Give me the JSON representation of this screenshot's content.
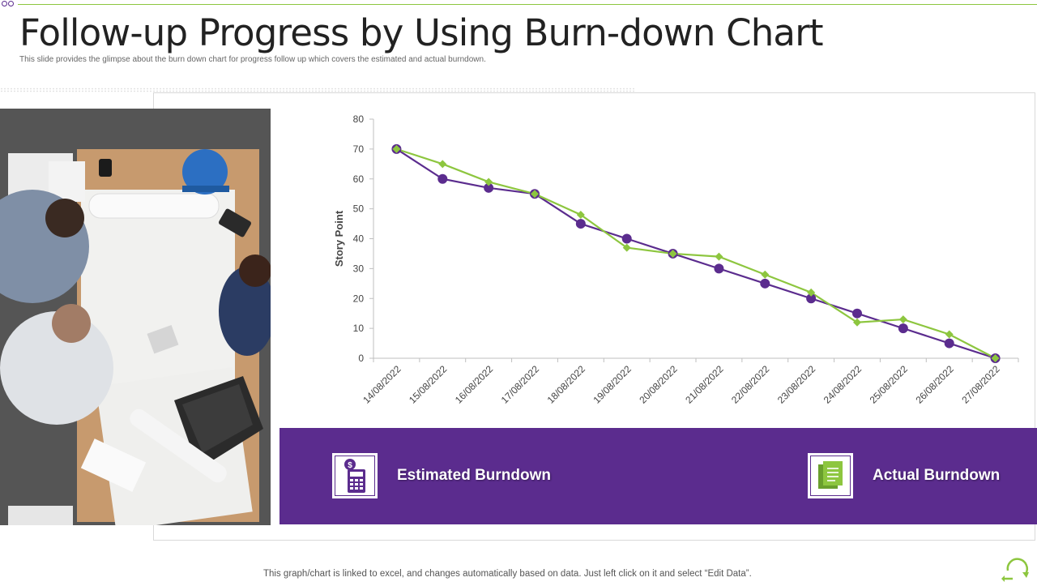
{
  "header": {
    "title": "Follow-up Progress by Using Burn-down Chart",
    "subtitle": "This slide provides the glimpse about the burn down chart for progress follow up which covers the estimated and actual burndown."
  },
  "legend": {
    "estimated_label": "Estimated Burndown",
    "actual_label": "Actual Burndown",
    "estimated_icon": "calculator-dollar-icon",
    "actual_icon": "documents-icon"
  },
  "footer": {
    "note": "This graph/chart is linked to excel,  and changes automatically based on data. Just left click on it and select “Edit Data”.",
    "refresh_icon": "refresh-cycle-icon"
  },
  "colors": {
    "purple": "#5b2c8e",
    "green": "#8dc63f"
  },
  "chart_data": {
    "type": "line",
    "title": "",
    "xlabel": "",
    "ylabel": "Story Point",
    "ylim": [
      0,
      80
    ],
    "yticks": [
      0,
      10,
      20,
      30,
      40,
      50,
      60,
      70,
      80
    ],
    "grid": false,
    "categories": [
      "14/08/2022",
      "15/08/2022",
      "16/08/2022",
      "17/08/2022",
      "18/08/2022",
      "19/08/2022",
      "20/08/2022",
      "21/08/2022",
      "22/08/2022",
      "23/08/2022",
      "24/08/2022",
      "25/08/2022",
      "26/08/2022",
      "27/08/2022"
    ],
    "series": [
      {
        "name": "Estimated Burndown",
        "color": "#5b2c8e",
        "marker": "circle",
        "values": [
          70,
          60,
          57,
          55,
          45,
          40,
          35,
          30,
          25,
          20,
          15,
          10,
          5,
          0
        ]
      },
      {
        "name": "Actual Burndown",
        "color": "#8dc63f",
        "marker": "diamond",
        "values": [
          70,
          65,
          59,
          55,
          48,
          37,
          35,
          34,
          28,
          22,
          12,
          13,
          8,
          0
        ]
      }
    ]
  }
}
